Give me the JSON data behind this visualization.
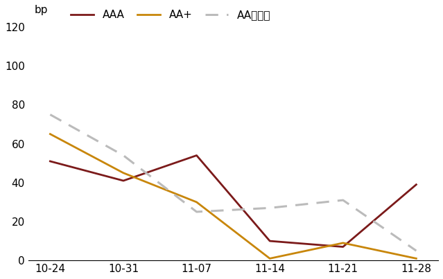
{
  "x_labels": [
    "10-24",
    "10-31",
    "11-07",
    "11-14",
    "11-21",
    "11-28"
  ],
  "series": [
    {
      "name": "AAA",
      "values": [
        51,
        41,
        54,
        10,
        7,
        39
      ],
      "color": "#7B1A1A",
      "linestyle": "solid",
      "linewidth": 2.0
    },
    {
      "name": "AA+",
      "values": [
        65,
        45,
        30,
        1,
        9,
        1
      ],
      "color": "#C8860A",
      "linestyle": "solid",
      "linewidth": 2.0
    },
    {
      "name": "AA及以下",
      "values": [
        75,
        54,
        25,
        27,
        31,
        5
      ],
      "color": "#BBBBBB",
      "linestyle": "dashed",
      "linewidth": 2.2
    }
  ],
  "ylabel": "bp",
  "ylim": [
    0,
    125
  ],
  "yticks": [
    0,
    20,
    40,
    60,
    80,
    100,
    120
  ],
  "figsize": [
    6.39,
    4.03
  ],
  "dpi": 100,
  "bg_color": "#FFFFFF"
}
